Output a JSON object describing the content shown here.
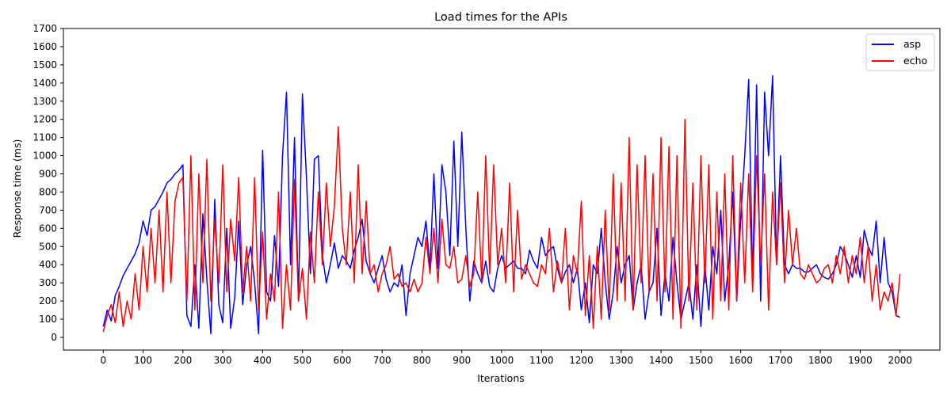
{
  "chart_data": {
    "type": "line",
    "title": "Load times for the APIs",
    "xlabel": "Iterations",
    "ylabel": "Response time (ms)",
    "xlim": [
      -100,
      2100
    ],
    "ylim": [
      -70,
      1700
    ],
    "xticks": [
      0,
      100,
      200,
      300,
      400,
      500,
      600,
      700,
      800,
      900,
      1000,
      1100,
      1200,
      1300,
      1400,
      1500,
      1600,
      1700,
      1800,
      1900,
      2000
    ],
    "yticks": [
      0,
      100,
      200,
      300,
      400,
      500,
      600,
      700,
      800,
      900,
      1000,
      1100,
      1200,
      1300,
      1400,
      1500,
      1600,
      1700
    ],
    "grid": false,
    "legend_position": "top-right",
    "series": [
      {
        "name": "asp",
        "color": "#0000ff",
        "x": [
          0,
          10,
          20,
          30,
          40,
          50,
          60,
          70,
          80,
          90,
          100,
          110,
          120,
          130,
          140,
          150,
          160,
          170,
          180,
          190,
          200,
          210,
          220,
          230,
          240,
          250,
          260,
          270,
          280,
          290,
          300,
          310,
          320,
          330,
          340,
          350,
          360,
          370,
          380,
          390,
          400,
          410,
          420,
          430,
          440,
          450,
          460,
          470,
          480,
          490,
          500,
          510,
          520,
          530,
          540,
          550,
          560,
          570,
          580,
          590,
          600,
          610,
          620,
          630,
          640,
          650,
          660,
          670,
          680,
          690,
          700,
          710,
          720,
          730,
          740,
          750,
          760,
          770,
          780,
          790,
          800,
          810,
          820,
          830,
          840,
          850,
          860,
          870,
          880,
          890,
          900,
          910,
          920,
          930,
          940,
          950,
          960,
          970,
          980,
          990,
          1000,
          1010,
          1020,
          1030,
          1040,
          1050,
          1060,
          1070,
          1080,
          1090,
          1100,
          1110,
          1120,
          1130,
          1140,
          1150,
          1160,
          1170,
          1180,
          1190,
          1200,
          1210,
          1220,
          1230,
          1240,
          1250,
          1260,
          1270,
          1280,
          1290,
          1300,
          1310,
          1320,
          1330,
          1340,
          1350,
          1360,
          1370,
          1380,
          1390,
          1400,
          1410,
          1420,
          1430,
          1440,
          1450,
          1460,
          1470,
          1480,
          1490,
          1500,
          1510,
          1520,
          1530,
          1540,
          1550,
          1560,
          1570,
          1580,
          1590,
          1600,
          1610,
          1620,
          1630,
          1640,
          1650,
          1660,
          1670,
          1680,
          1690,
          1700,
          1710,
          1720,
          1730,
          1740,
          1750,
          1760,
          1770,
          1780,
          1790,
          1800,
          1810,
          1820,
          1830,
          1840,
          1850,
          1860,
          1870,
          1880,
          1890,
          1900,
          1910,
          1920,
          1930,
          1940,
          1950,
          1960,
          1970,
          1980,
          1990,
          2000
        ],
        "y": [
          60,
          150,
          90,
          230,
          280,
          340,
          380,
          420,
          460,
          520,
          640,
          560,
          700,
          720,
          760,
          800,
          850,
          870,
          900,
          920,
          950,
          120,
          60,
          400,
          50,
          680,
          320,
          20,
          760,
          180,
          80,
          600,
          50,
          220,
          640,
          180,
          400,
          500,
          300,
          20,
          1030,
          250,
          200,
          560,
          280,
          1000,
          1350,
          400,
          1100,
          200,
          1340,
          880,
          350,
          980,
          1000,
          450,
          300,
          400,
          520,
          380,
          450,
          420,
          380,
          480,
          550,
          650,
          420,
          350,
          300,
          380,
          450,
          320,
          250,
          300,
          280,
          400,
          120,
          350,
          450,
          550,
          500,
          640,
          380,
          900,
          380,
          950,
          800,
          450,
          1080,
          500,
          1130,
          600,
          200,
          420,
          350,
          300,
          420,
          280,
          250,
          380,
          450,
          380,
          400,
          420,
          380,
          380,
          350,
          480,
          420,
          380,
          550,
          450,
          480,
          500,
          380,
          300,
          360,
          400,
          300,
          380,
          150,
          300,
          80,
          400,
          350,
          600,
          300,
          100,
          250,
          500,
          300,
          400,
          450,
          150,
          300,
          400,
          100,
          250,
          300,
          600,
          120,
          350,
          200,
          550,
          300,
          100,
          200,
          300,
          100,
          400,
          60,
          400,
          150,
          500,
          350,
          700,
          200,
          400,
          800,
          200,
          650,
          1000,
          1420,
          300,
          1390,
          200,
          1350,
          1000,
          1440,
          400,
          1000,
          400,
          350,
          400,
          380,
          380,
          360,
          360,
          380,
          400,
          350,
          330,
          320,
          350,
          400,
          500,
          460,
          400,
          330,
          450,
          330,
          590,
          500,
          450,
          640,
          300,
          550,
          300,
          250,
          120,
          110
        ]
      },
      {
        "name": "echo",
        "color": "#ff0000",
        "x": [
          0,
          10,
          20,
          30,
          40,
          50,
          60,
          70,
          80,
          90,
          100,
          110,
          120,
          130,
          140,
          150,
          160,
          170,
          180,
          190,
          200,
          210,
          220,
          230,
          240,
          250,
          260,
          270,
          280,
          290,
          300,
          310,
          320,
          330,
          340,
          350,
          360,
          370,
          380,
          390,
          400,
          410,
          420,
          430,
          440,
          450,
          460,
          470,
          480,
          490,
          500,
          510,
          520,
          530,
          540,
          550,
          560,
          570,
          580,
          590,
          600,
          610,
          620,
          630,
          640,
          650,
          660,
          670,
          680,
          690,
          700,
          710,
          720,
          730,
          740,
          750,
          760,
          770,
          780,
          790,
          800,
          810,
          820,
          830,
          840,
          850,
          860,
          870,
          880,
          890,
          900,
          910,
          920,
          930,
          940,
          950,
          960,
          970,
          980,
          990,
          1000,
          1010,
          1020,
          1030,
          1040,
          1050,
          1060,
          1070,
          1080,
          1090,
          1100,
          1110,
          1120,
          1130,
          1140,
          1150,
          1160,
          1170,
          1180,
          1190,
          1200,
          1210,
          1220,
          1230,
          1240,
          1250,
          1260,
          1270,
          1280,
          1290,
          1300,
          1310,
          1320,
          1330,
          1340,
          1350,
          1360,
          1370,
          1380,
          1390,
          1400,
          1410,
          1420,
          1430,
          1440,
          1450,
          1460,
          1470,
          1480,
          1490,
          1500,
          1510,
          1520,
          1530,
          1540,
          1550,
          1560,
          1570,
          1580,
          1590,
          1600,
          1610,
          1620,
          1630,
          1640,
          1650,
          1660,
          1670,
          1680,
          1690,
          1700,
          1710,
          1720,
          1730,
          1740,
          1750,
          1760,
          1770,
          1780,
          1790,
          1800,
          1810,
          1820,
          1830,
          1840,
          1850,
          1860,
          1870,
          1880,
          1890,
          1900,
          1910,
          1920,
          1930,
          1940,
          1950,
          1960,
          1970,
          1980,
          1990,
          2000
        ],
        "y": [
          30,
          120,
          180,
          80,
          250,
          60,
          200,
          100,
          350,
          150,
          500,
          250,
          600,
          300,
          700,
          250,
          800,
          300,
          750,
          850,
          880,
          200,
          1000,
          150,
          900,
          300,
          980,
          200,
          650,
          300,
          950,
          250,
          650,
          420,
          880,
          250,
          500,
          200,
          880,
          150,
          580,
          100,
          350,
          200,
          800,
          50,
          400,
          150,
          870,
          200,
          380,
          100,
          580,
          300,
          800,
          400,
          850,
          500,
          720,
          1160,
          600,
          400,
          800,
          300,
          950,
          350,
          750,
          350,
          400,
          250,
          350,
          400,
          500,
          320,
          350,
          280,
          300,
          250,
          320,
          250,
          300,
          550,
          350,
          600,
          300,
          650,
          400,
          380,
          500,
          300,
          320,
          450,
          280,
          350,
          800,
          300,
          1000,
          350,
          950,
          400,
          600,
          300,
          850,
          250,
          700,
          320,
          400,
          350,
          300,
          280,
          400,
          350,
          600,
          250,
          420,
          300,
          600,
          150,
          450,
          350,
          750,
          120,
          450,
          50,
          500,
          100,
          700,
          150,
          900,
          200,
          850,
          200,
          1100,
          150,
          950,
          300,
          1000,
          250,
          900,
          200,
          1100,
          250,
          1050,
          100,
          1000,
          50,
          1200,
          200,
          850,
          150,
          1000,
          300,
          950,
          100,
          800,
          200,
          900,
          150,
          1000,
          200,
          850,
          300,
          900,
          250,
          1000,
          400,
          900,
          150,
          800,
          400,
          850,
          300,
          700,
          400,
          600,
          350,
          320,
          400,
          350,
          300,
          320,
          380,
          400,
          300,
          450,
          350,
          500,
          300,
          450,
          350,
          550,
          300,
          500,
          200,
          400,
          150,
          250,
          200,
          300,
          120,
          350
        ]
      }
    ]
  }
}
